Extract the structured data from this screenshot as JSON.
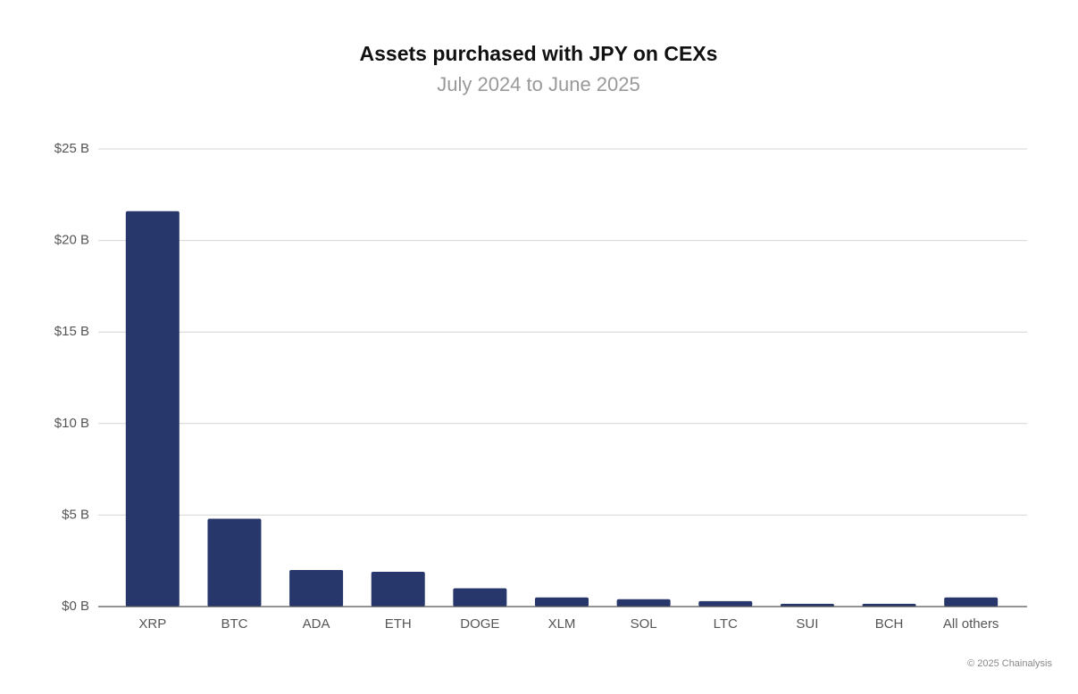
{
  "chart_data": {
    "type": "bar",
    "title": "Assets purchased with JPY on CEXs",
    "subtitle": "July 2024 to June 2025",
    "categories": [
      "XRP",
      "BTC",
      "ADA",
      "ETH",
      "DOGE",
      "XLM",
      "SOL",
      "LTC",
      "SUI",
      "BCH",
      "All others"
    ],
    "values": [
      21.6,
      4.8,
      2.0,
      1.9,
      1.0,
      0.5,
      0.4,
      0.3,
      0.15,
      0.15,
      0.5
    ],
    "color": "#27376b",
    "ylim": [
      0,
      25
    ],
    "yticks": [
      {
        "value": 0,
        "label": "$0 B"
      },
      {
        "value": 5,
        "label": "$5 B"
      },
      {
        "value": 10,
        "label": "$10 B"
      },
      {
        "value": 15,
        "label": "$15 B"
      },
      {
        "value": 20,
        "label": "$20 B"
      },
      {
        "value": 25,
        "label": "$25 B"
      }
    ],
    "grid": true,
    "source": "© 2025 Chainalysis"
  }
}
